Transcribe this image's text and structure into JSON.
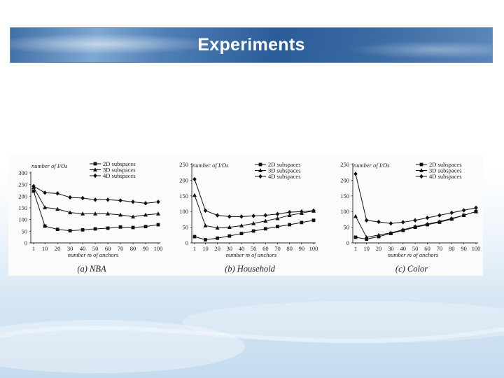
{
  "slide": {
    "title": "Experiments"
  },
  "chart_data": [
    {
      "type": "line",
      "panel_label": "(a) NBA",
      "title_ylabel": "number of I/Os",
      "xlabel": "number m of anchors",
      "categories": [
        "1",
        "10",
        "20",
        "30",
        "40",
        "50",
        "60",
        "70",
        "80",
        "90",
        "100"
      ],
      "yticks": [
        "0",
        "50",
        "100",
        "150",
        "200",
        "250",
        "300"
      ],
      "ylim": [
        0,
        300
      ],
      "series": [
        {
          "name": "2D subspaces",
          "marker": "square",
          "values": [
            222,
            72,
            58,
            52,
            56,
            60,
            63,
            68,
            66,
            70,
            78
          ]
        },
        {
          "name": "3D subspaces",
          "marker": "triangle",
          "values": [
            238,
            152,
            145,
            130,
            125,
            125,
            125,
            120,
            112,
            120,
            125
          ]
        },
        {
          "name": "4D subspaces",
          "marker": "diamond",
          "values": [
            243,
            215,
            212,
            195,
            192,
            185,
            185,
            182,
            176,
            170,
            176
          ]
        }
      ]
    },
    {
      "type": "line",
      "panel_label": "(b) Household",
      "title_ylabel": "number of I/Os",
      "xlabel": "number m of anchors",
      "categories": [
        "1",
        "10",
        "20",
        "30",
        "40",
        "50",
        "60",
        "70",
        "80",
        "90",
        "100"
      ],
      "yticks": [
        "0",
        "50",
        "100",
        "150",
        "200",
        "250"
      ],
      "ylim": [
        0,
        250
      ],
      "series": [
        {
          "name": "2D subspaces",
          "marker": "square",
          "values": [
            20,
            10,
            15,
            22,
            30,
            38,
            45,
            52,
            58,
            65,
            72
          ]
        },
        {
          "name": "3D subspaces",
          "marker": "triangle",
          "values": [
            152,
            55,
            48,
            50,
            55,
            62,
            70,
            78,
            88,
            95,
            102
          ]
        },
        {
          "name": "4D subspaces",
          "marker": "diamond",
          "values": [
            203,
            103,
            88,
            84,
            84,
            86,
            88,
            92,
            98,
            100,
            103
          ]
        }
      ]
    },
    {
      "type": "line",
      "panel_label": "(c) Color",
      "title_ylabel": "number of I/Os",
      "xlabel": "number m of anchors",
      "categories": [
        "1",
        "10",
        "20",
        "30",
        "40",
        "50",
        "60",
        "70",
        "80",
        "90",
        "100"
      ],
      "yticks": [
        "0",
        "50",
        "100",
        "150",
        "200",
        "250"
      ],
      "ylim": [
        0,
        250
      ],
      "series": [
        {
          "name": "2D subspaces",
          "marker": "square",
          "values": [
            18,
            12,
            20,
            30,
            40,
            50,
            58,
            66,
            76,
            88,
            100
          ]
        },
        {
          "name": "3D subspaces",
          "marker": "triangle",
          "values": [
            85,
            18,
            25,
            32,
            42,
            52,
            60,
            68,
            78,
            88,
            100
          ]
        },
        {
          "name": "4D subspaces",
          "marker": "diamond",
          "values": [
            220,
            72,
            67,
            62,
            66,
            72,
            80,
            88,
            96,
            104,
            112
          ]
        }
      ]
    }
  ]
}
